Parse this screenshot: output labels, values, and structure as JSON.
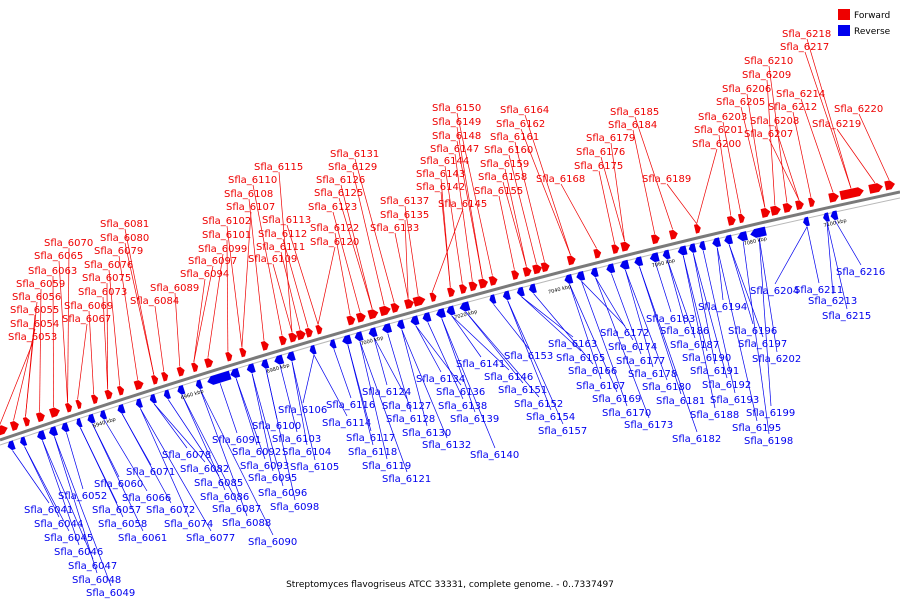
{
  "legend": [
    {
      "label": "Forward",
      "color": "#ee0000"
    },
    {
      "label": "Reverse",
      "color": "#0000ee"
    }
  ],
  "caption": "Streptomyces flavogriseus ATCC 33331, complete genome. - 0..7337497",
  "ticks": [
    "6940 kbp",
    "6960 kbp",
    "6980 kbp",
    "7000 kbp",
    "7020 kbp",
    "7040 kbp",
    "7060 kbp",
    "7080 kbp",
    "7100 kbp"
  ],
  "colors": {
    "forward": "#ee0000",
    "reverse": "#0000ee",
    "axis": "#7a7a7a"
  },
  "forward_labels": [
    "Sfla_6053",
    "Sfla_6054",
    "Sfla_6055",
    "Sfla_6056",
    "Sfla_6059",
    "Sfla_6063",
    "Sfla_6065",
    "Sfla_6070",
    "Sfla_6067",
    "Sfla_6069",
    "Sfla_6073",
    "Sfla_6075",
    "Sfla_6076",
    "Sfla_6079",
    "Sfla_6080",
    "Sfla_6081",
    "Sfla_6084",
    "Sfla_6089",
    "Sfla_6094",
    "Sfla_6097",
    "Sfla_6099",
    "Sfla_6101",
    "Sfla_6102",
    "Sfla_6107",
    "Sfla_6108",
    "Sfla_6110",
    "Sfla_6115",
    "Sfla_6109",
    "Sfla_6111",
    "Sfla_6112",
    "Sfla_6113",
    "Sfla_6120",
    "Sfla_6122",
    "Sfla_6123",
    "Sfla_6125",
    "Sfla_6126",
    "Sfla_6129",
    "Sfla_6131",
    "Sfla_6133",
    "Sfla_6135",
    "Sfla_6137",
    "Sfla_6145",
    "Sfla_6142",
    "Sfla_6143",
    "Sfla_6144",
    "Sfla_6147",
    "Sfla_6148",
    "Sfla_6149",
    "Sfla_6150",
    "Sfla_6155",
    "Sfla_6158",
    "Sfla_6159",
    "Sfla_6160",
    "Sfla_6161",
    "Sfla_6162",
    "Sfla_6164",
    "Sfla_6168",
    "Sfla_6175",
    "Sfla_6176",
    "Sfla_6179",
    "Sfla_6184",
    "Sfla_6185",
    "Sfla_6189",
    "Sfla_6200",
    "Sfla_6201",
    "Sfla_6203",
    "Sfla_6205",
    "Sfla_6206",
    "Sfla_6209",
    "Sfla_6210",
    "Sfla_6207",
    "Sfla_6208",
    "Sfla_6212",
    "Sfla_6214",
    "Sfla_6217",
    "Sfla_6218",
    "Sfla_6219",
    "Sfla_6220"
  ],
  "reverse_labels": [
    "Sfla_6041",
    "Sfla_6044",
    "Sfla_6045",
    "Sfla_6046",
    "Sfla_6047",
    "Sfla_6048",
    "Sfla_6049",
    "Sfla_6052",
    "Sfla_6057",
    "Sfla_6058",
    "Sfla_6060",
    "Sfla_6061",
    "Sfla_6066",
    "Sfla_6071",
    "Sfla_6072",
    "Sfla_6074",
    "Sfla_6077",
    "Sfla_6078",
    "Sfla_6082",
    "Sfla_6085",
    "Sfla_6086",
    "Sfla_6087",
    "Sfla_6088",
    "Sfla_6090",
    "Sfla_6091",
    "Sfla_6092",
    "Sfla_6093",
    "Sfla_6095",
    "Sfla_6096",
    "Sfla_6098",
    "Sfla_6100",
    "Sfla_6103",
    "Sfla_6104",
    "Sfla_6105",
    "Sfla_6106",
    "Sfla_6114",
    "Sfla_6116",
    "Sfla_6117",
    "Sfla_6118",
    "Sfla_6119",
    "Sfla_6121",
    "Sfla_6124",
    "Sfla_6127",
    "Sfla_6128",
    "Sfla_6130",
    "Sfla_6132",
    "Sfla_6134",
    "Sfla_6136",
    "Sfla_6138",
    "Sfla_6139",
    "Sfla_6140",
    "Sfla_6141",
    "Sfla_6146",
    "Sfla_6151",
    "Sfla_6152",
    "Sfla_6153",
    "Sfla_6154",
    "Sfla_6157",
    "Sfla_6163",
    "Sfla_6165",
    "Sfla_6166",
    "Sfla_6167",
    "Sfla_6169",
    "Sfla_6170",
    "Sfla_6172",
    "Sfla_6173",
    "Sfla_6174",
    "Sfla_6177",
    "Sfla_6178",
    "Sfla_6180",
    "Sfla_6181",
    "Sfla_6182",
    "Sfla_6183",
    "Sfla_6186",
    "Sfla_6187",
    "Sfla_6188",
    "Sfla_6190",
    "Sfla_6191",
    "Sfla_6192",
    "Sfla_6193",
    "Sfla_6194",
    "Sfla_6195",
    "Sfla_6196",
    "Sfla_6197",
    "Sfla_6198",
    "Sfla_6199",
    "Sfla_6202",
    "Sfla_6204",
    "Sfla_6211",
    "Sfla_6213",
    "Sfla_6215",
    "Sfla_6216"
  ]
}
